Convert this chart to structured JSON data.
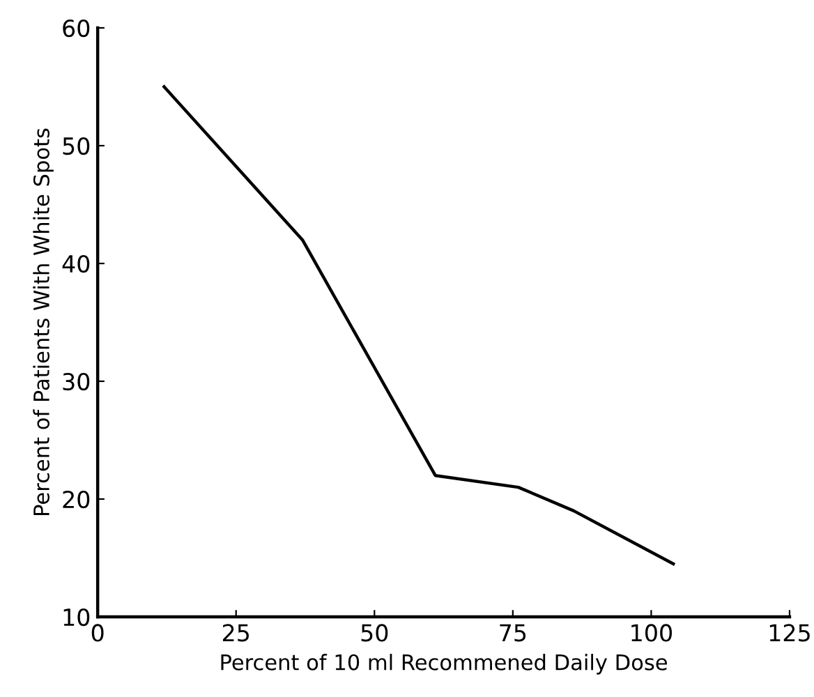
{
  "chart_data": {
    "type": "line",
    "xlabel": "Percent of 10 ml Recommened Daily Dose",
    "ylabel": "Percent of Patients With White Spots",
    "x": [
      12,
      37,
      61,
      76,
      86,
      104
    ],
    "values": [
      55,
      42,
      22,
      21,
      19,
      14.5
    ],
    "color": "#000000",
    "xlim": [
      0,
      125
    ],
    "ylim": [
      10,
      60
    ],
    "xticks": [
      0,
      25,
      50,
      75,
      100,
      125
    ],
    "yticks": [
      10,
      20,
      30,
      40,
      50,
      60
    ],
    "grid": false,
    "legend": false,
    "marker": "none",
    "line_style": "solid"
  }
}
